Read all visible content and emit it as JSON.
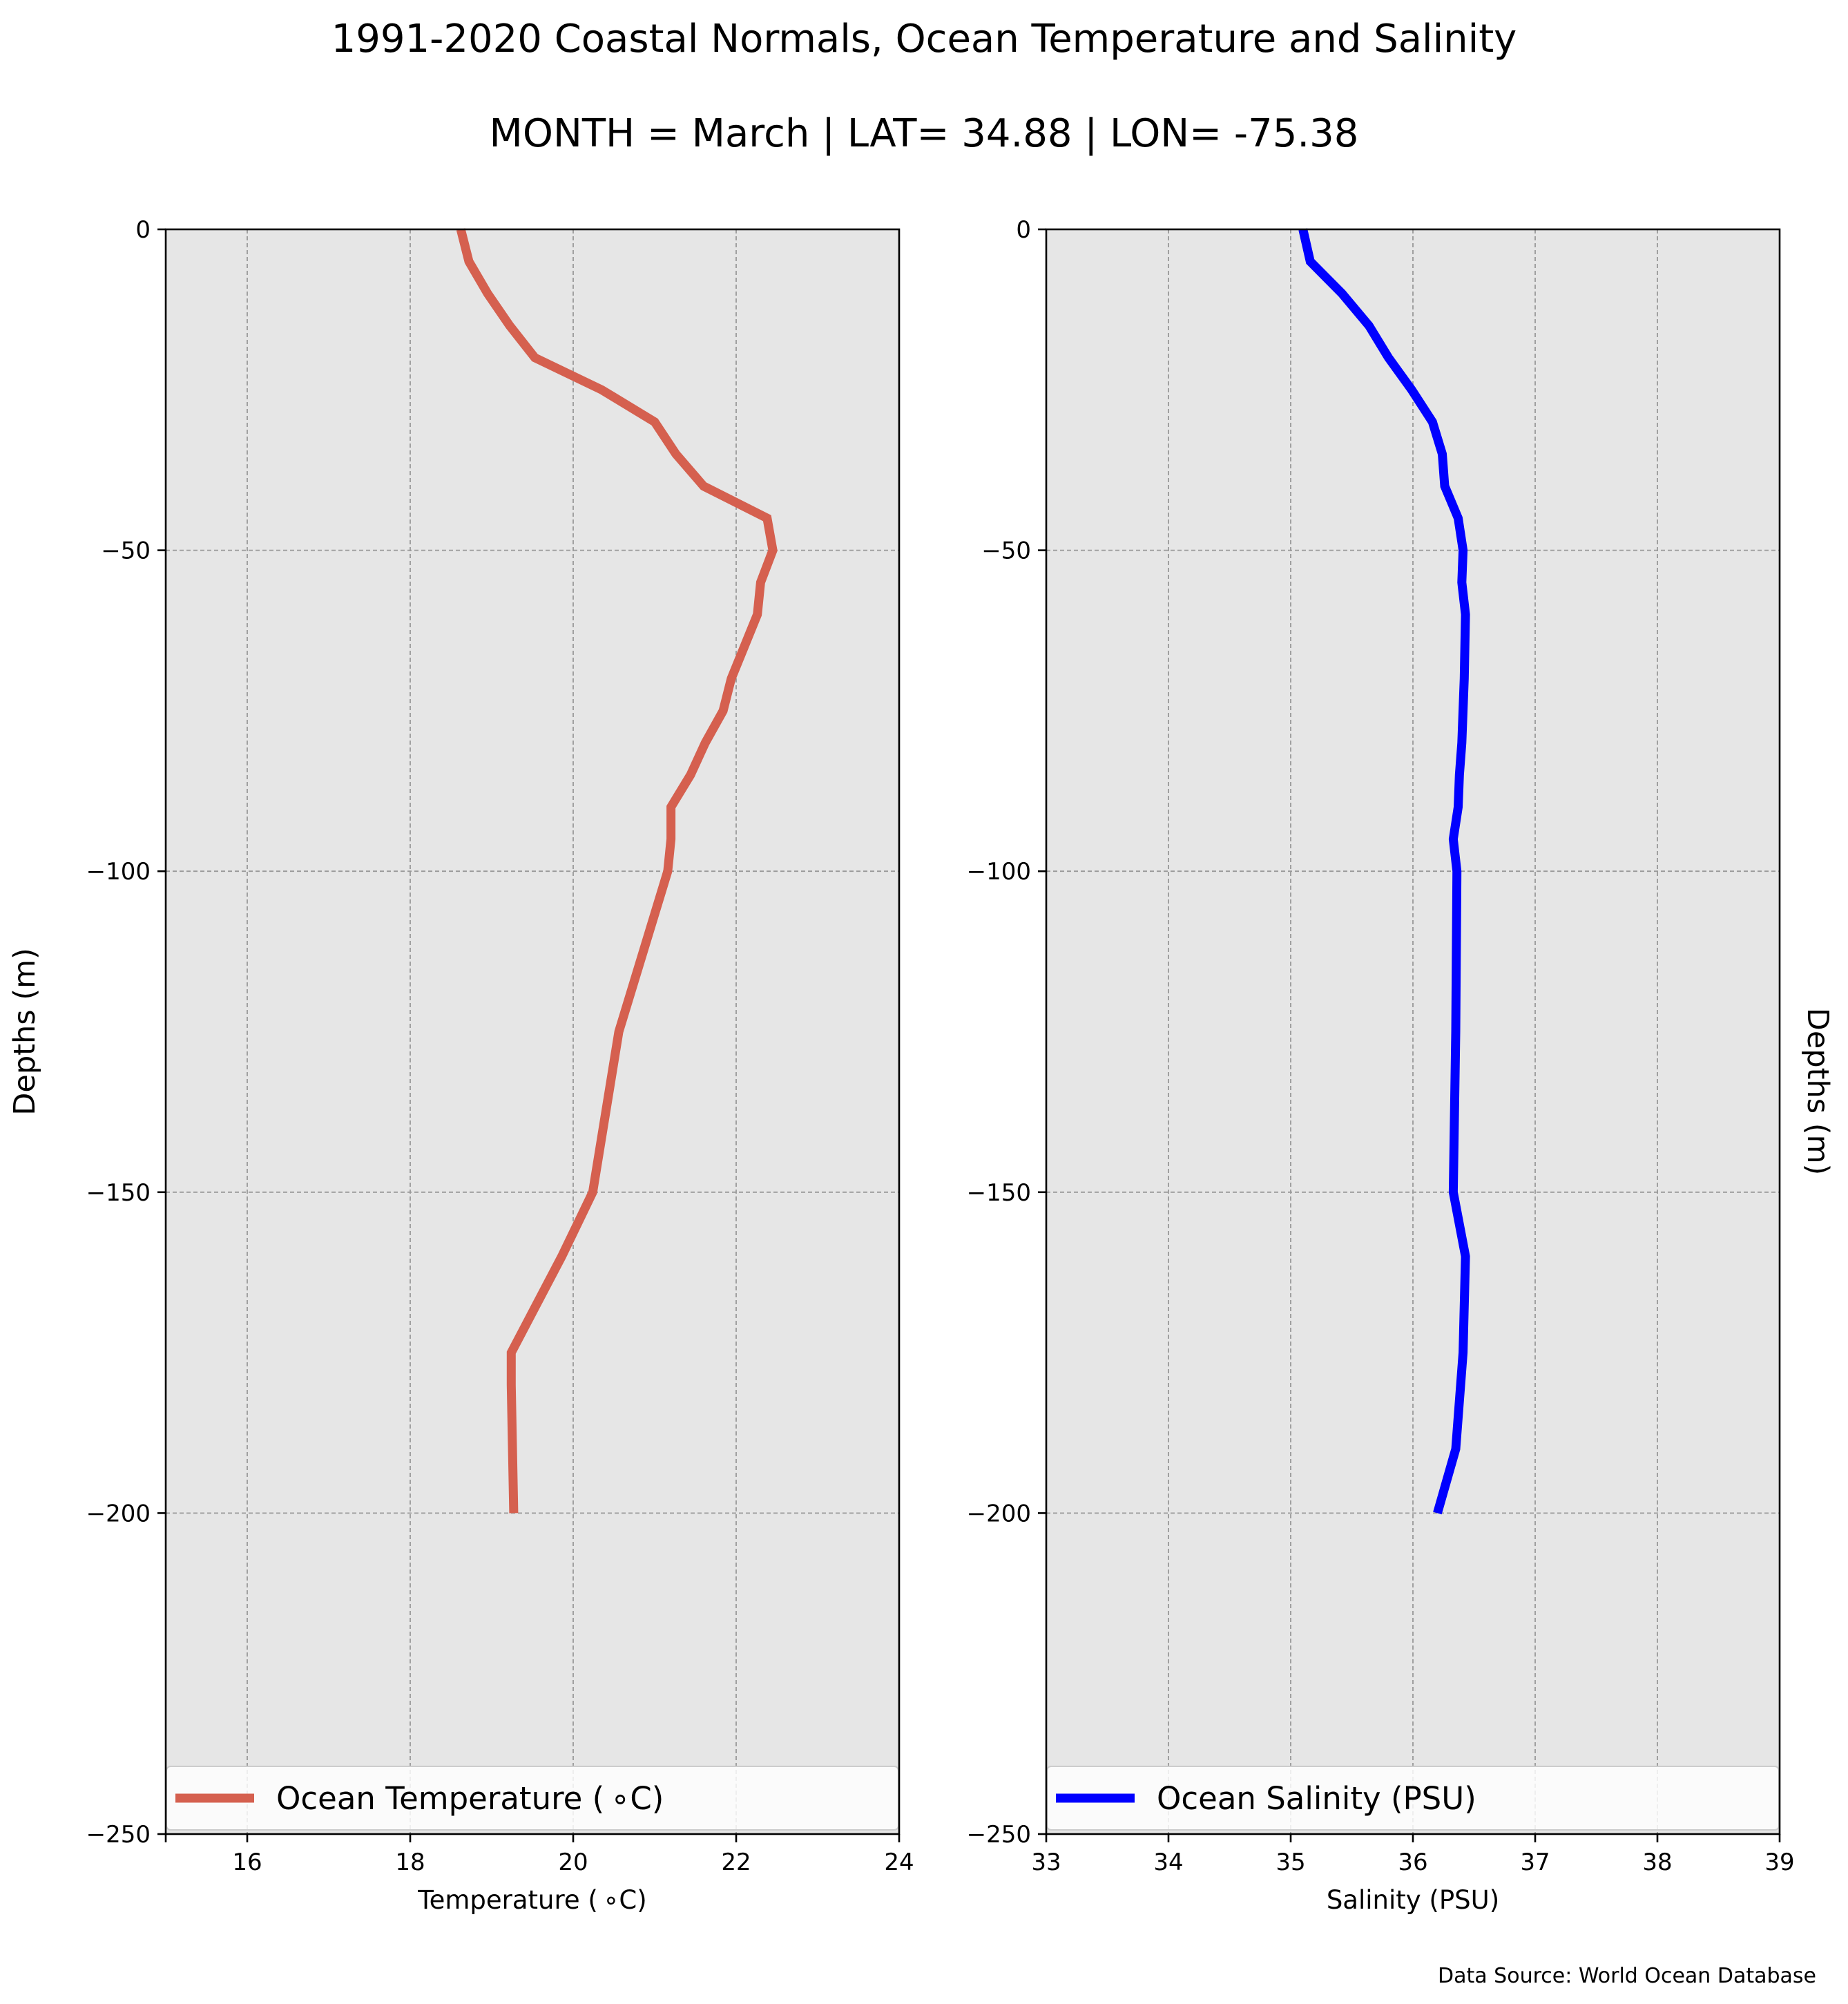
{
  "figure": {
    "title": "1991-2020 Coastal Normals, Ocean Temperature and Salinity",
    "subtitle": "MONTH = March | LAT= 34.88 | LON= -75.38",
    "source": "Data Source: World Ocean Database"
  },
  "chart_data": [
    {
      "type": "line",
      "xlabel": "Temperature ($^\\circ$C)",
      "xlabel_display": "Temperature ( ∘C)",
      "ylabel": "Depths (m)",
      "xlim": [
        15,
        24
      ],
      "ylim": [
        -250,
        0
      ],
      "xticks": [
        16,
        18,
        20,
        22,
        24
      ],
      "xtick_labels": [
        "16",
        "18",
        "20",
        "22",
        "24"
      ],
      "yticks": [
        0,
        -50,
        -100,
        -150,
        -200,
        -250
      ],
      "ytick_labels": [
        "0",
        "−50",
        "−100",
        "−150",
        "−200",
        "−250"
      ],
      "grid": true,
      "legend_placement": "lower center",
      "series": [
        {
          "name": "Ocean Temperature ( ∘C)",
          "color": "#d5604f",
          "x": [
            18.62,
            18.72,
            18.95,
            19.22,
            19.53,
            20.35,
            21.0,
            21.26,
            21.6,
            22.38,
            22.45,
            22.3,
            22.26,
            22.1,
            21.94,
            21.84,
            21.62,
            21.44,
            21.2,
            21.2,
            21.16,
            20.56,
            20.24,
            19.86,
            19.24,
            19.24,
            19.27
          ],
          "y": [
            0,
            -5,
            -10,
            -15,
            -20,
            -25,
            -30,
            -35,
            -40,
            -45,
            -50,
            -55,
            -60,
            -65,
            -70,
            -75,
            -80,
            -85,
            -90,
            -95,
            -100,
            -125,
            -150,
            -160,
            -175,
            -180,
            -200
          ]
        }
      ]
    },
    {
      "type": "line",
      "xlabel": "Salinity (PSU)",
      "ylabel": "Depths (m)",
      "xlim": [
        33,
        39
      ],
      "ylim": [
        -250,
        0
      ],
      "xticks": [
        33,
        34,
        35,
        36,
        37,
        38,
        39
      ],
      "xtick_labels": [
        "33",
        "34",
        "35",
        "36",
        "37",
        "38",
        "39"
      ],
      "yticks": [
        0,
        -50,
        -100,
        -150,
        -200,
        -250
      ],
      "ytick_labels": [
        "0",
        "−50",
        "−100",
        "−150",
        "−200",
        "−250"
      ],
      "grid": true,
      "legend_placement": "lower center",
      "series": [
        {
          "name": "Ocean Salinity (PSU)",
          "color": "#0000ff",
          "x": [
            35.1,
            35.16,
            35.42,
            35.64,
            35.8,
            35.99,
            36.16,
            36.24,
            36.26,
            36.37,
            36.41,
            36.4,
            36.43,
            36.42,
            36.4,
            36.38,
            36.37,
            36.33,
            36.36,
            36.35,
            36.33,
            36.43,
            36.41,
            36.35,
            36.2
          ],
          "y": [
            0,
            -5,
            -10,
            -15,
            -20,
            -25,
            -30,
            -35,
            -40,
            -45,
            -50,
            -55,
            -60,
            -70,
            -80,
            -85,
            -90,
            -95,
            -100,
            -125,
            -150,
            -160,
            -175,
            -190,
            -200
          ]
        }
      ]
    }
  ]
}
